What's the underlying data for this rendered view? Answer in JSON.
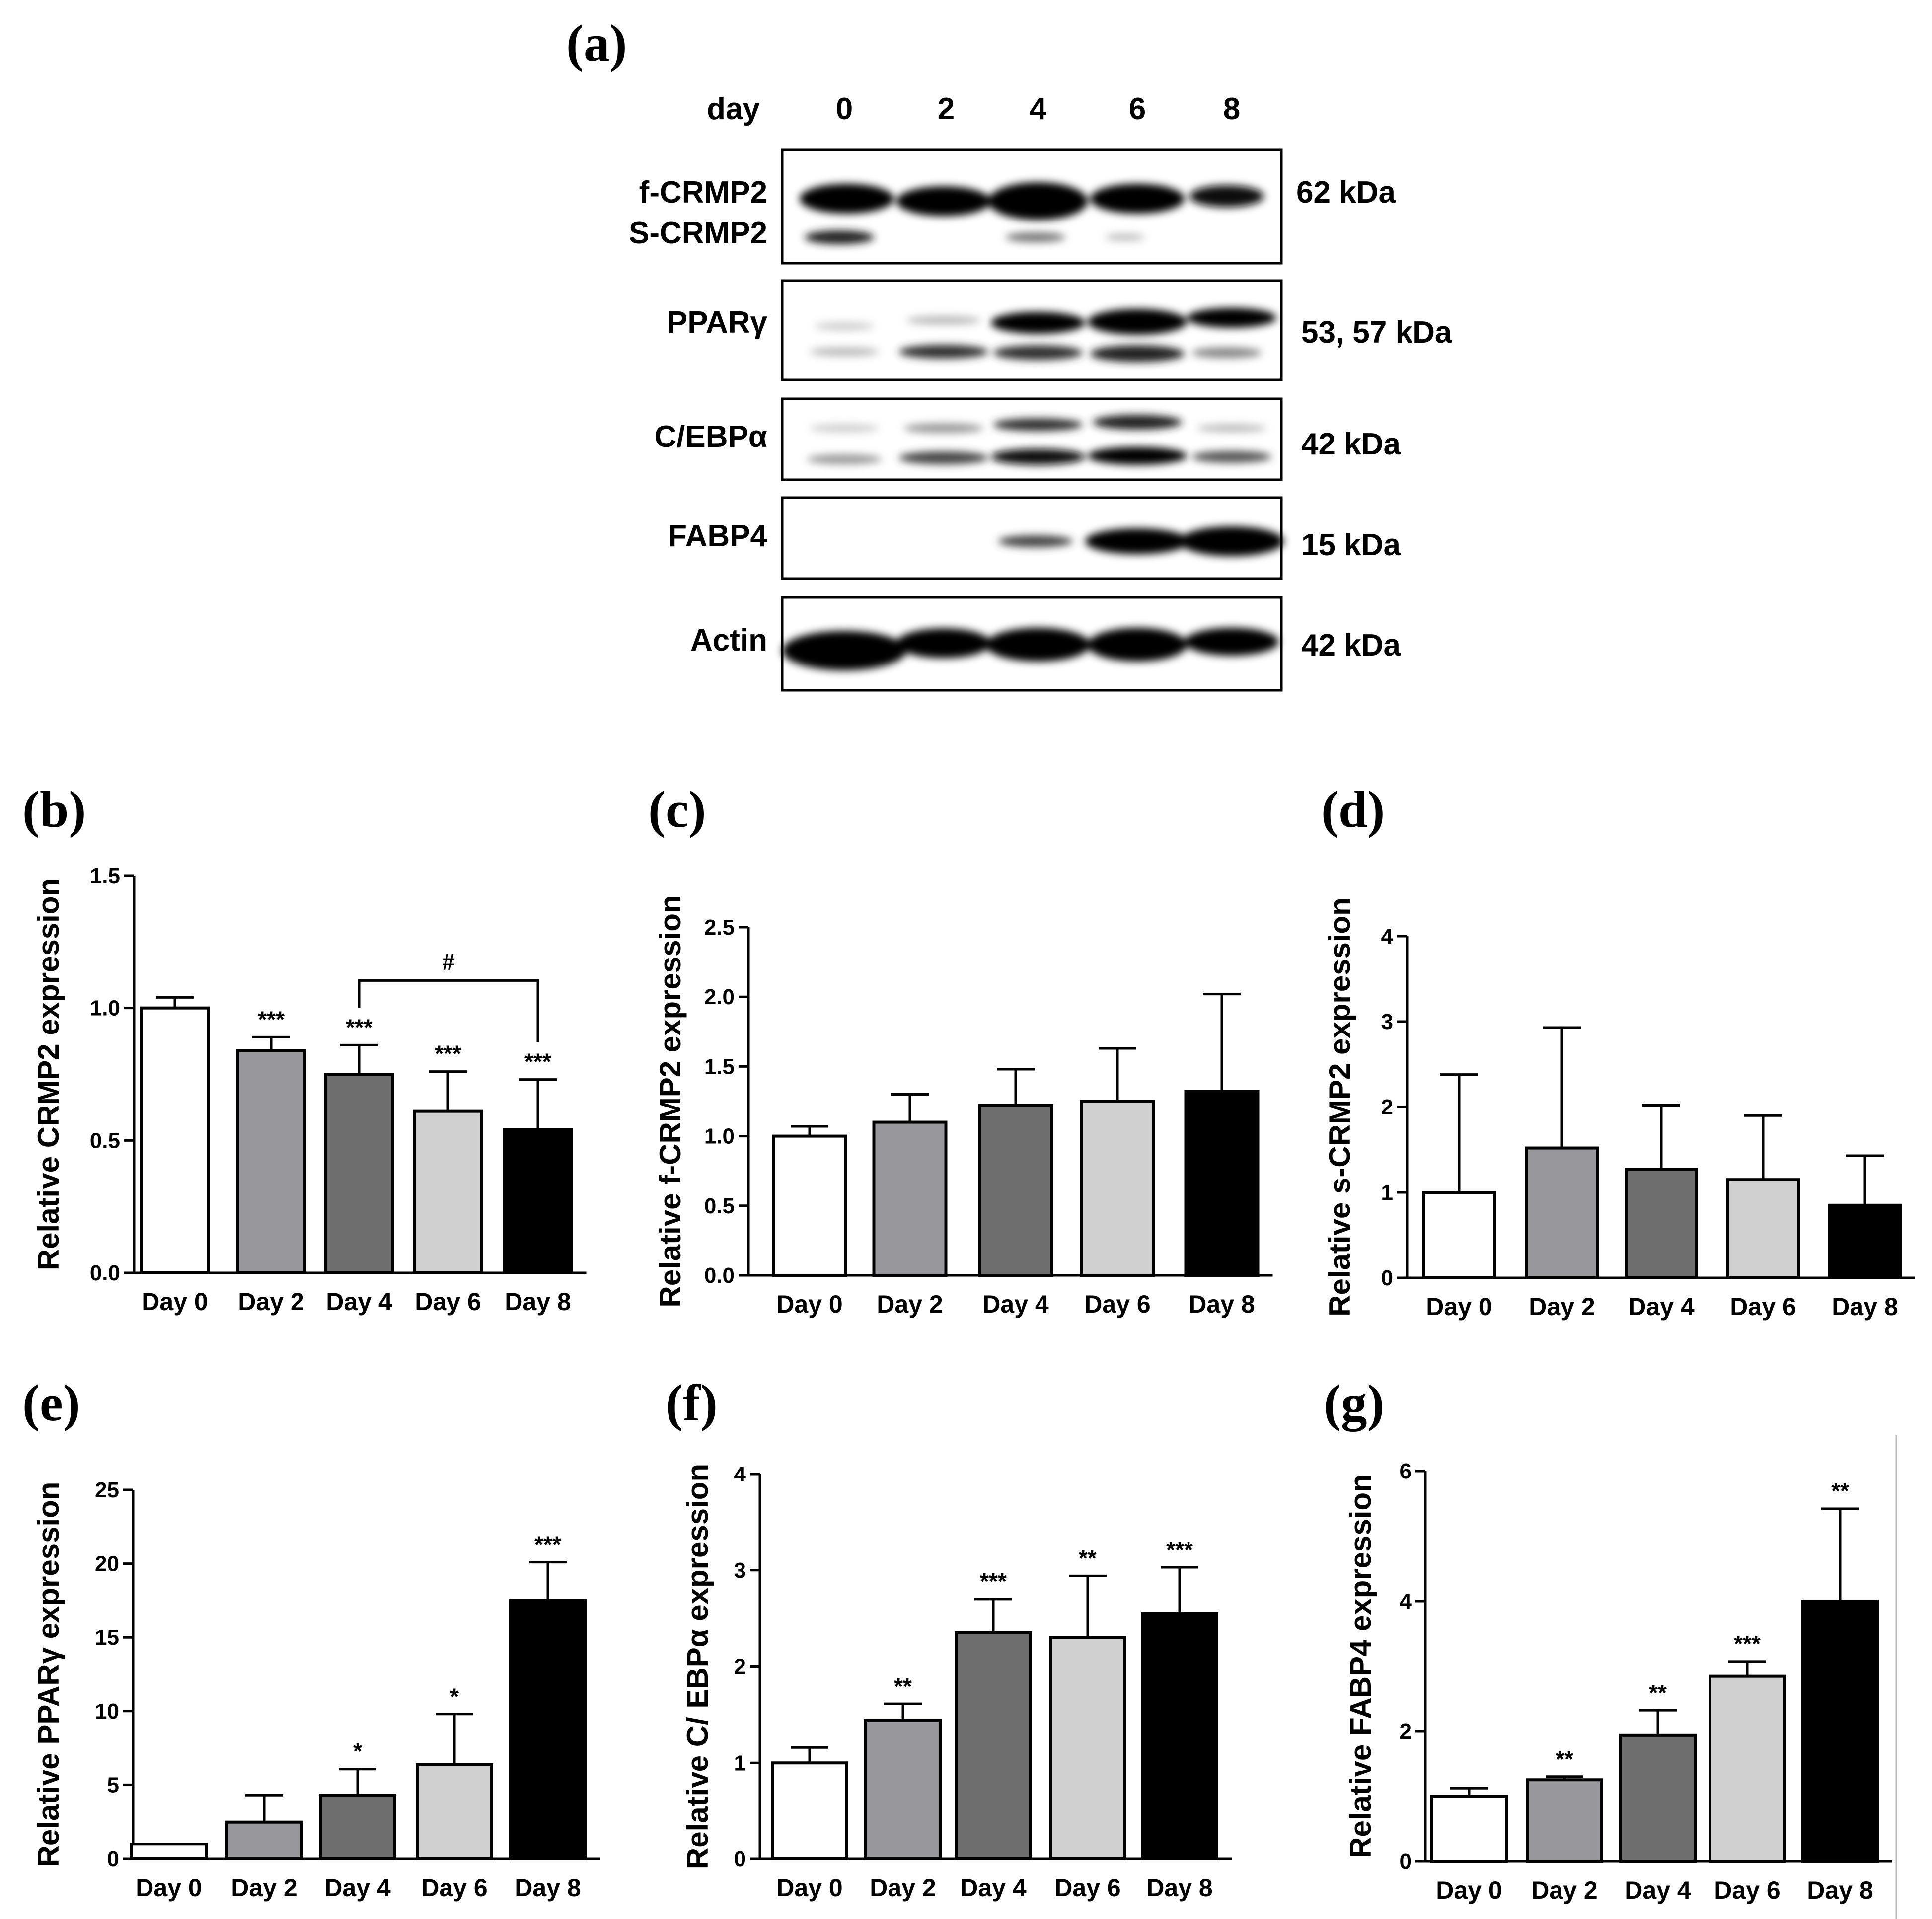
{
  "figure": {
    "panel_a": {
      "label": "(a)",
      "day_label": "day",
      "days": [
        "0",
        "2",
        "4",
        "6",
        "8"
      ],
      "blots": [
        {
          "labels": [
            "f-CRMP2",
            "S-CRMP2"
          ],
          "kda": "62 kDa"
        },
        {
          "labels": [
            "PPARγ"
          ],
          "kda": "53, 57 kDa"
        },
        {
          "labels": [
            "C/EBPα"
          ],
          "kda": "42 kDa"
        },
        {
          "labels": [
            "FABP4"
          ],
          "kda": "15 kDa"
        },
        {
          "labels": [
            "Actin"
          ],
          "kda": "42 kDa"
        }
      ]
    }
  },
  "chart_data": [
    {
      "panel": "(b)",
      "type": "bar",
      "categories": [
        "Day 0",
        "Day 2",
        "Day 4",
        "Day 6",
        "Day 8"
      ],
      "values": [
        1.0,
        0.84,
        0.75,
        0.61,
        0.54
      ],
      "errors": [
        0.04,
        0.05,
        0.11,
        0.15,
        0.19
      ],
      "significance": [
        "",
        "***",
        "***",
        "***",
        "***"
      ],
      "bracket": {
        "from": "Day 4",
        "to": "Day 8",
        "label": "#"
      },
      "ylabel": "Relative CRMP2 expression",
      "ylim": [
        0,
        1.5
      ],
      "yticks": [
        "0.0",
        "0.5",
        "1.0",
        "1.5"
      ],
      "colors": [
        "#ffffff",
        "#98979c",
        "#6e6e6e",
        "#d0d0d0",
        "#000000"
      ]
    },
    {
      "panel": "(c)",
      "type": "bar",
      "categories": [
        "Day 0",
        "Day 2",
        "Day 4",
        "Day 6",
        "Day 8"
      ],
      "values": [
        1.0,
        1.1,
        1.22,
        1.25,
        1.32
      ],
      "errors": [
        0.07,
        0.2,
        0.26,
        0.38,
        0.7
      ],
      "significance": [
        "",
        "",
        "",
        "",
        ""
      ],
      "ylabel": "Relative f-CRMP2 expression",
      "ylim": [
        0,
        2.5
      ],
      "yticks": [
        "0.0",
        "0.5",
        "1.0",
        "1.5",
        "2.0",
        "2.5"
      ],
      "colors": [
        "#ffffff",
        "#98979c",
        "#6e6e6e",
        "#d0d0d0",
        "#000000"
      ]
    },
    {
      "panel": "(d)",
      "type": "bar",
      "categories": [
        "Day 0",
        "Day 2",
        "Day 4",
        "Day 6",
        "Day 8"
      ],
      "values": [
        1.0,
        1.52,
        1.27,
        1.15,
        0.85
      ],
      "errors": [
        1.38,
        1.41,
        0.75,
        0.75,
        0.58
      ],
      "significance": [
        "",
        "",
        "",
        "",
        ""
      ],
      "ylabel": "Relative s-CRMP2 expression",
      "ylim": [
        0,
        4
      ],
      "yticks": [
        "0",
        "1",
        "2",
        "3",
        "4"
      ],
      "colors": [
        "#ffffff",
        "#98979c",
        "#6e6e6e",
        "#d0d0d0",
        "#000000"
      ]
    },
    {
      "panel": "(e)",
      "type": "bar",
      "categories": [
        "Day 0",
        "Day 2",
        "Day 4",
        "Day 6",
        "Day 8"
      ],
      "values": [
        1.0,
        2.5,
        4.3,
        6.4,
        17.5
      ],
      "errors": [
        0.0,
        1.8,
        1.8,
        3.4,
        2.6
      ],
      "significance": [
        "",
        "",
        "*",
        "*",
        "***"
      ],
      "ylabel": "Relative PPARγ expression",
      "ylim": [
        0,
        25
      ],
      "yticks": [
        "0",
        "5",
        "10",
        "15",
        "20",
        "25"
      ],
      "colors": [
        "#ffffff",
        "#98979c",
        "#6e6e6e",
        "#d0d0d0",
        "#000000"
      ]
    },
    {
      "panel": "(f)",
      "type": "bar",
      "categories": [
        "Day 0",
        "Day 2",
        "Day 4",
        "Day 6",
        "Day 8"
      ],
      "values": [
        1.0,
        1.44,
        2.35,
        2.3,
        2.55
      ],
      "errors": [
        0.16,
        0.17,
        0.35,
        0.64,
        0.48
      ],
      "significance": [
        "",
        "**",
        "***",
        "**",
        "***"
      ],
      "ylabel": "Relative C/ EBPα expression",
      "ylim": [
        0,
        4
      ],
      "yticks": [
        "0",
        "1",
        "2",
        "3",
        "4"
      ],
      "colors": [
        "#ffffff",
        "#98979c",
        "#6e6e6e",
        "#d0d0d0",
        "#000000"
      ]
    },
    {
      "panel": "(g)",
      "type": "bar",
      "categories": [
        "Day 0",
        "Day 2",
        "Day 4",
        "Day 6",
        "Day 8"
      ],
      "values": [
        1.0,
        1.25,
        1.94,
        2.85,
        4.0
      ],
      "errors": [
        0.12,
        0.05,
        0.38,
        0.22,
        1.42
      ],
      "significance": [
        "",
        "**",
        "**",
        "***",
        "**"
      ],
      "ylabel": "Relative FABP4 expression",
      "ylim": [
        0,
        6
      ],
      "yticks": [
        "0",
        "2",
        "4",
        "6"
      ],
      "colors": [
        "#ffffff",
        "#98979c",
        "#6e6e6e",
        "#d0d0d0",
        "#000000"
      ]
    }
  ]
}
